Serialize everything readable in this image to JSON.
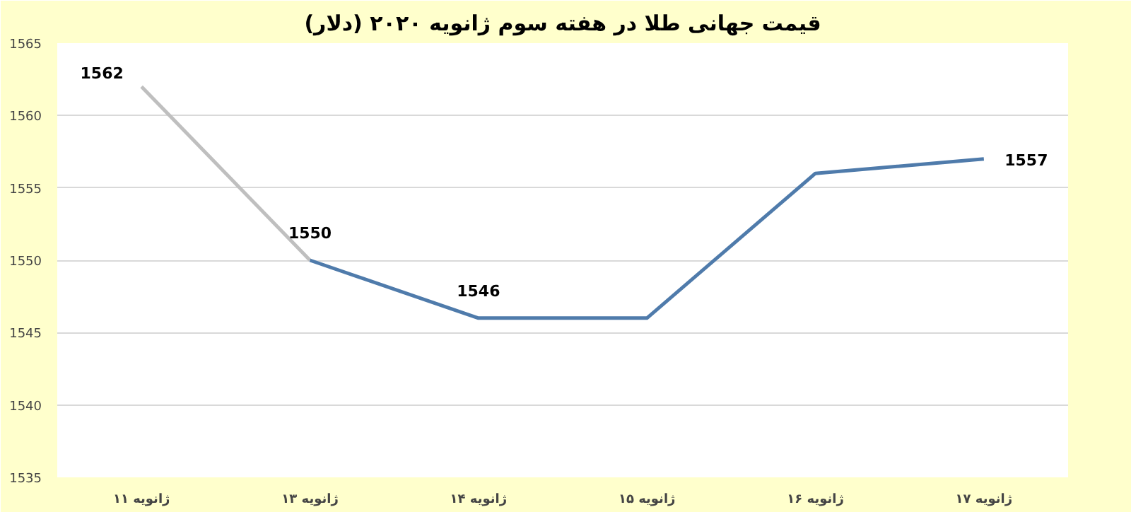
{
  "chart_data": {
    "type": "line",
    "title": "قیمت جهانی طلا در هفته سوم ژانویه ۲۰۲۰ (دلار)",
    "categories": [
      "۱۱ ژانویه",
      "۱۳ ژانویه",
      "۱۴ ژانویه",
      "۱۵ ژانویه",
      "۱۶ ژانویه",
      "۱۷ ژانویه"
    ],
    "series": [
      {
        "color": "#bfbfbf",
        "values": [
          1562,
          1550,
          null,
          null,
          null,
          null
        ],
        "value_labels": [
          "1562",
          "1550",
          null,
          null,
          null,
          null
        ]
      },
      {
        "color": "#4f7bab",
        "values": [
          null,
          1550,
          1546,
          1546,
          1556,
          1557
        ],
        "value_labels": [
          null,
          null,
          "1546",
          null,
          null,
          "1557"
        ]
      }
    ],
    "ylim": [
      1535,
      1565
    ],
    "yticks": [
      1535,
      1540,
      1545,
      1550,
      1555,
      1560,
      1565
    ],
    "grid": "y",
    "marker": "none",
    "line_style": "solid"
  }
}
